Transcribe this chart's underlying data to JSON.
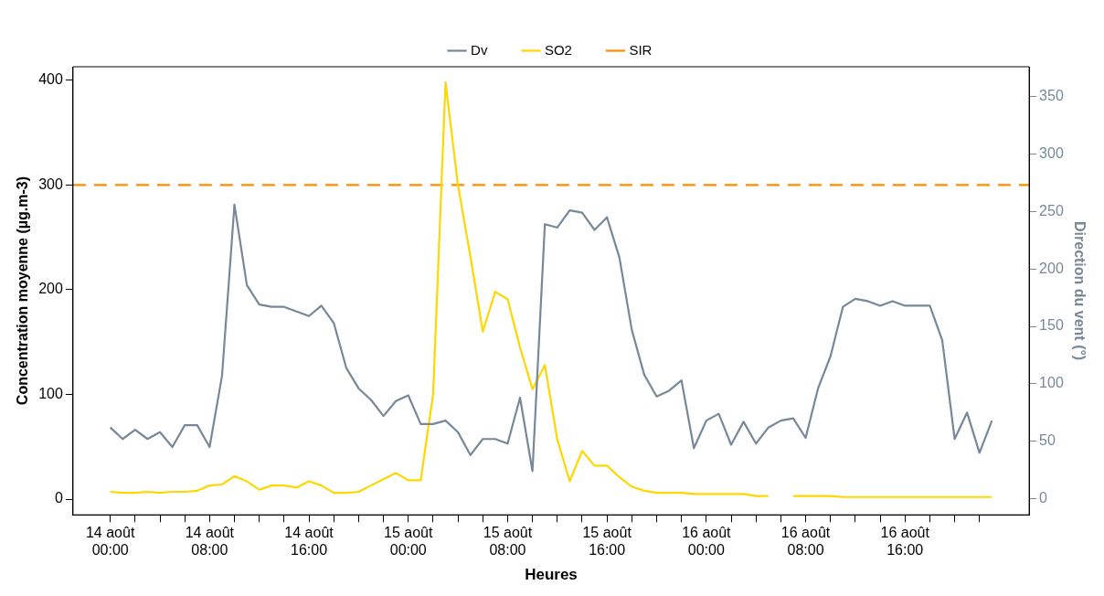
{
  "chart_data": {
    "type": "line",
    "xlabel": "Heures",
    "ylabel": "Concentration moyenne (µg.m-3)",
    "y2label": "Direction du vent (°)",
    "legend": "top",
    "grid": false,
    "marker": "none",
    "line_style": "solid",
    "categories": [
      "14 août 00:00",
      null,
      null,
      null,
      null,
      null,
      null,
      null,
      "14 août 08:00",
      null,
      null,
      null,
      null,
      null,
      null,
      null,
      "14 août 16:00",
      null,
      null,
      null,
      null,
      null,
      null,
      null,
      "15 août 00:00",
      null,
      null,
      null,
      null,
      null,
      null,
      null,
      "15 août 08:00",
      null,
      null,
      null,
      null,
      null,
      null,
      null,
      "15 août 16:00",
      null,
      null,
      null,
      null,
      null,
      null,
      null,
      "16 août 00:00",
      null,
      null,
      null,
      null,
      null,
      null,
      null,
      "16 août 08:00",
      null,
      null,
      null,
      null,
      null,
      null,
      null,
      "16 août 16:00",
      null,
      null,
      null,
      null,
      null,
      null,
      null
    ],
    "ylim": [
      -15,
      413
    ],
    "yticks": [
      0,
      100,
      200,
      300,
      400
    ],
    "y2lim": [
      -14,
      376
    ],
    "y2ticks": [
      0,
      50,
      100,
      150,
      200,
      250,
      300,
      350
    ],
    "series": [
      {
        "name": "Dv",
        "color": "#778899",
        "axis": "y2",
        "values": [
          62,
          52,
          60,
          52,
          58,
          45,
          64,
          64,
          45,
          107,
          256,
          186,
          169,
          167,
          167,
          163,
          159,
          168,
          153,
          114,
          96,
          86,
          72,
          85,
          90,
          65,
          65,
          68,
          58,
          38,
          52,
          52,
          48,
          88,
          24,
          239,
          236,
          251,
          249,
          234,
          245,
          210,
          147,
          108,
          89,
          94,
          103,
          44,
          68,
          74,
          47,
          67,
          48,
          62,
          68,
          70,
          53,
          96,
          124,
          167,
          174,
          172,
          168,
          172,
          168,
          168,
          168,
          138,
          52,
          75,
          40,
          68
        ]
      },
      {
        "name": "SO2",
        "color": "#ffd700",
        "values": [
          7,
          6,
          6,
          7,
          6,
          7,
          7,
          8,
          13,
          14,
          22,
          17,
          9,
          13,
          13,
          11,
          17,
          13,
          6,
          6,
          7,
          13,
          19,
          25,
          18,
          18,
          100,
          398,
          300,
          232,
          160,
          198,
          191,
          145,
          105,
          128,
          57,
          17,
          46,
          32,
          32,
          21,
          12,
          8,
          6,
          6,
          6,
          5,
          5,
          5,
          5,
          5,
          3,
          3,
          null,
          3,
          3,
          3,
          3,
          2,
          2,
          2,
          2,
          2,
          2,
          2,
          2,
          2,
          2,
          2,
          2,
          2
        ]
      }
    ],
    "ref_lines": [
      {
        "axis": "y",
        "value": 300,
        "label": "SIR",
        "color": "#ff8c00",
        "line_style": "dashed"
      }
    ]
  }
}
